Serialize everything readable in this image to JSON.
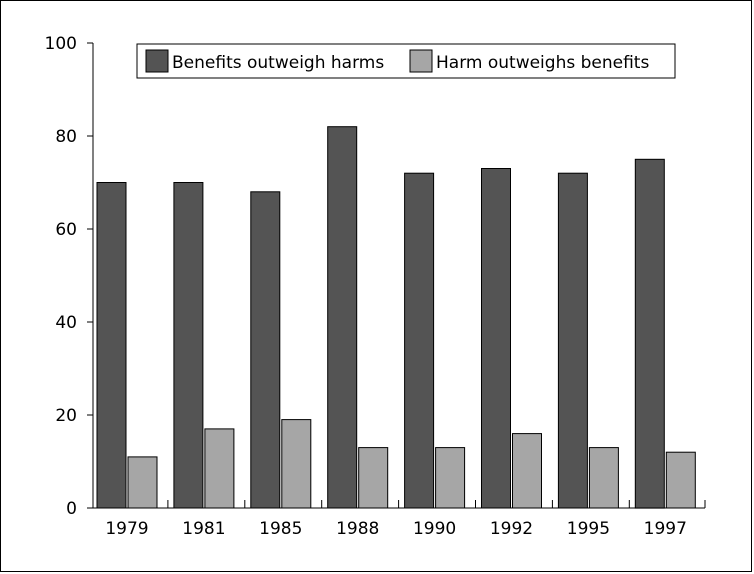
{
  "chart_data": {
    "type": "bar",
    "categories": [
      "1979",
      "1981",
      "1985",
      "1988",
      "1990",
      "1992",
      "1995",
      "1997"
    ],
    "series": [
      {
        "name": "Benefits outweigh harms",
        "values": [
          70,
          70,
          68,
          82,
          72,
          73,
          72,
          75
        ],
        "color": "#545454"
      },
      {
        "name": "Harm outweighs benefits",
        "values": [
          11,
          17,
          19,
          13,
          13,
          16,
          13,
          12
        ],
        "color": "#a6a6a6"
      }
    ],
    "ylim": [
      0,
      100
    ],
    "yticks": [
      0,
      20,
      40,
      60,
      80,
      100
    ],
    "title": "",
    "xlabel": "",
    "ylabel": "",
    "legend_position": "top",
    "grid": false
  }
}
